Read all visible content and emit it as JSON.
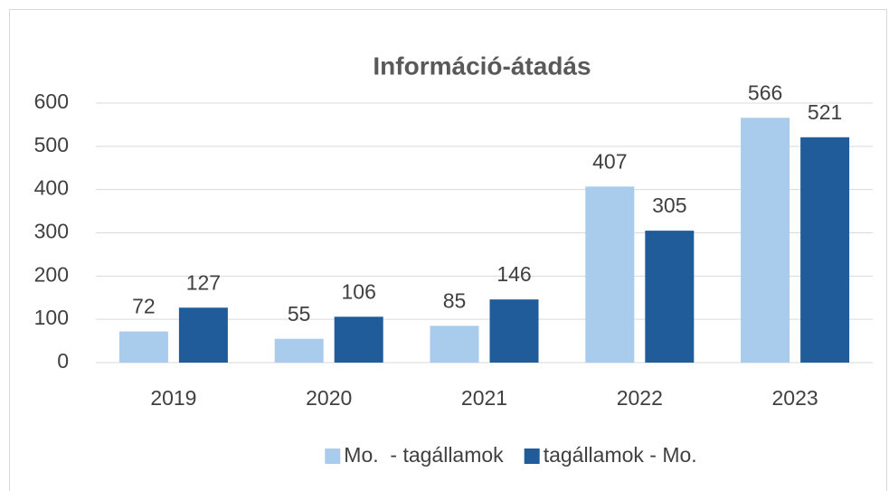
{
  "chart_data": {
    "type": "bar",
    "title": "Információ-átadás",
    "categories": [
      "2019",
      "2020",
      "2021",
      "2022",
      "2023"
    ],
    "series": [
      {
        "name": "Mo.  - tagállamok",
        "color": "#a9cbec",
        "values": [
          72,
          55,
          85,
          407,
          566
        ]
      },
      {
        "name": "tagállamok - Mo.",
        "color": "#1f5c99",
        "values": [
          127,
          106,
          146,
          305,
          521
        ]
      }
    ],
    "ylim": [
      0,
      600
    ],
    "yticks": [
      0,
      100,
      200,
      300,
      400,
      500,
      600
    ],
    "grid": true,
    "legend": "bottom"
  }
}
